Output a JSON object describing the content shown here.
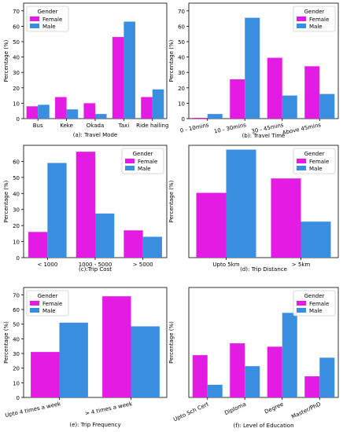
{
  "colors": {
    "female": "#e31be3",
    "male": "#3a8ee0"
  },
  "chart_data": [
    {
      "type": "bar",
      "caption": "(a): Travel Mode",
      "ylabel": "Percentage (%)",
      "ylim": [
        0,
        75
      ],
      "yticks": [
        0,
        10,
        20,
        30,
        40,
        50,
        60,
        70
      ],
      "categories": [
        "Bus",
        "Keke",
        "Okada",
        "Taxi",
        "Ride hailing"
      ],
      "tick_rotation": 0,
      "legend": {
        "title": "Gender",
        "position": "upper-left"
      },
      "series": [
        {
          "name": "Female",
          "values": [
            8,
            14,
            10,
            53,
            14
          ]
        },
        {
          "name": "Male",
          "values": [
            9,
            6,
            3,
            63,
            19
          ]
        }
      ]
    },
    {
      "type": "bar",
      "caption": "(b): Travel Time",
      "ylabel": "Percentage (%)",
      "ylim": [
        0,
        75
      ],
      "yticks": [
        0,
        10,
        20,
        30,
        40,
        50,
        60,
        70
      ],
      "categories": [
        "0 - 10mins",
        "10 - 30mins",
        "30 - 45mins",
        "Above 45mins"
      ],
      "tick_rotation": 12,
      "legend": {
        "title": "Gender",
        "position": "upper-right"
      },
      "series": [
        {
          "name": "Female",
          "values": [
            0.5,
            25.5,
            39.5,
            34
          ]
        },
        {
          "name": "Male",
          "values": [
            3,
            65.5,
            15,
            16
          ]
        }
      ]
    },
    {
      "type": "bar",
      "caption": "(c):Trip Cost",
      "ylabel": "Percentage (%)",
      "ylim": [
        0,
        70
      ],
      "yticks": [
        0,
        10,
        20,
        30,
        40,
        50,
        60
      ],
      "categories": [
        "< 1000",
        "1000 - 5000",
        "> 5000"
      ],
      "tick_rotation": 0,
      "legend": {
        "title": "Gender",
        "position": "upper-right"
      },
      "series": [
        {
          "name": "Female",
          "values": [
            16,
            66,
            17
          ]
        },
        {
          "name": "Male",
          "values": [
            59,
            27.5,
            13
          ]
        }
      ]
    },
    {
      "type": "bar",
      "caption": "(d): Trip Distance",
      "ylabel": "Percentage (%)",
      "ylim": [
        0,
        78
      ],
      "yticks": [],
      "categories": [
        "Upto 5km",
        ">  5km"
      ],
      "tick_rotation": 0,
      "legend": {
        "title": "Gender",
        "position": "upper-right"
      },
      "series": [
        {
          "name": "Female",
          "values": [
            45,
            55
          ]
        },
        {
          "name": "Male",
          "values": [
            75,
            25
          ]
        }
      ]
    },
    {
      "type": "bar",
      "caption": "(e): Trip Frequency",
      "ylabel": "Percentage (%)",
      "ylim": [
        0,
        75
      ],
      "yticks": [
        0,
        10,
        20,
        30,
        40,
        50,
        60,
        70
      ],
      "categories": [
        "Upto 4 times a week",
        "> 4 times a week"
      ],
      "tick_rotation": 12,
      "legend": {
        "title": "Gender",
        "position": "upper-left"
      },
      "series": [
        {
          "name": "Female",
          "values": [
            31,
            69
          ]
        },
        {
          "name": "Male",
          "values": [
            51,
            48.5
          ]
        }
      ]
    },
    {
      "type": "bar",
      "caption": "(f): Level of Education",
      "ylabel": "Percentage (%)",
      "ylim": [
        0,
        65
      ],
      "yticks": [],
      "categories": [
        "Upto Sch Cert",
        "Diploma",
        "Degree",
        "Master/PhD"
      ],
      "tick_rotation": 25,
      "legend": {
        "title": "Gender",
        "position": "upper-right"
      },
      "series": [
        {
          "name": "Female",
          "values": [
            25,
            32,
            30,
            12.5
          ]
        },
        {
          "name": "Male",
          "values": [
            7.5,
            18.5,
            50,
            23.5
          ]
        }
      ]
    }
  ]
}
